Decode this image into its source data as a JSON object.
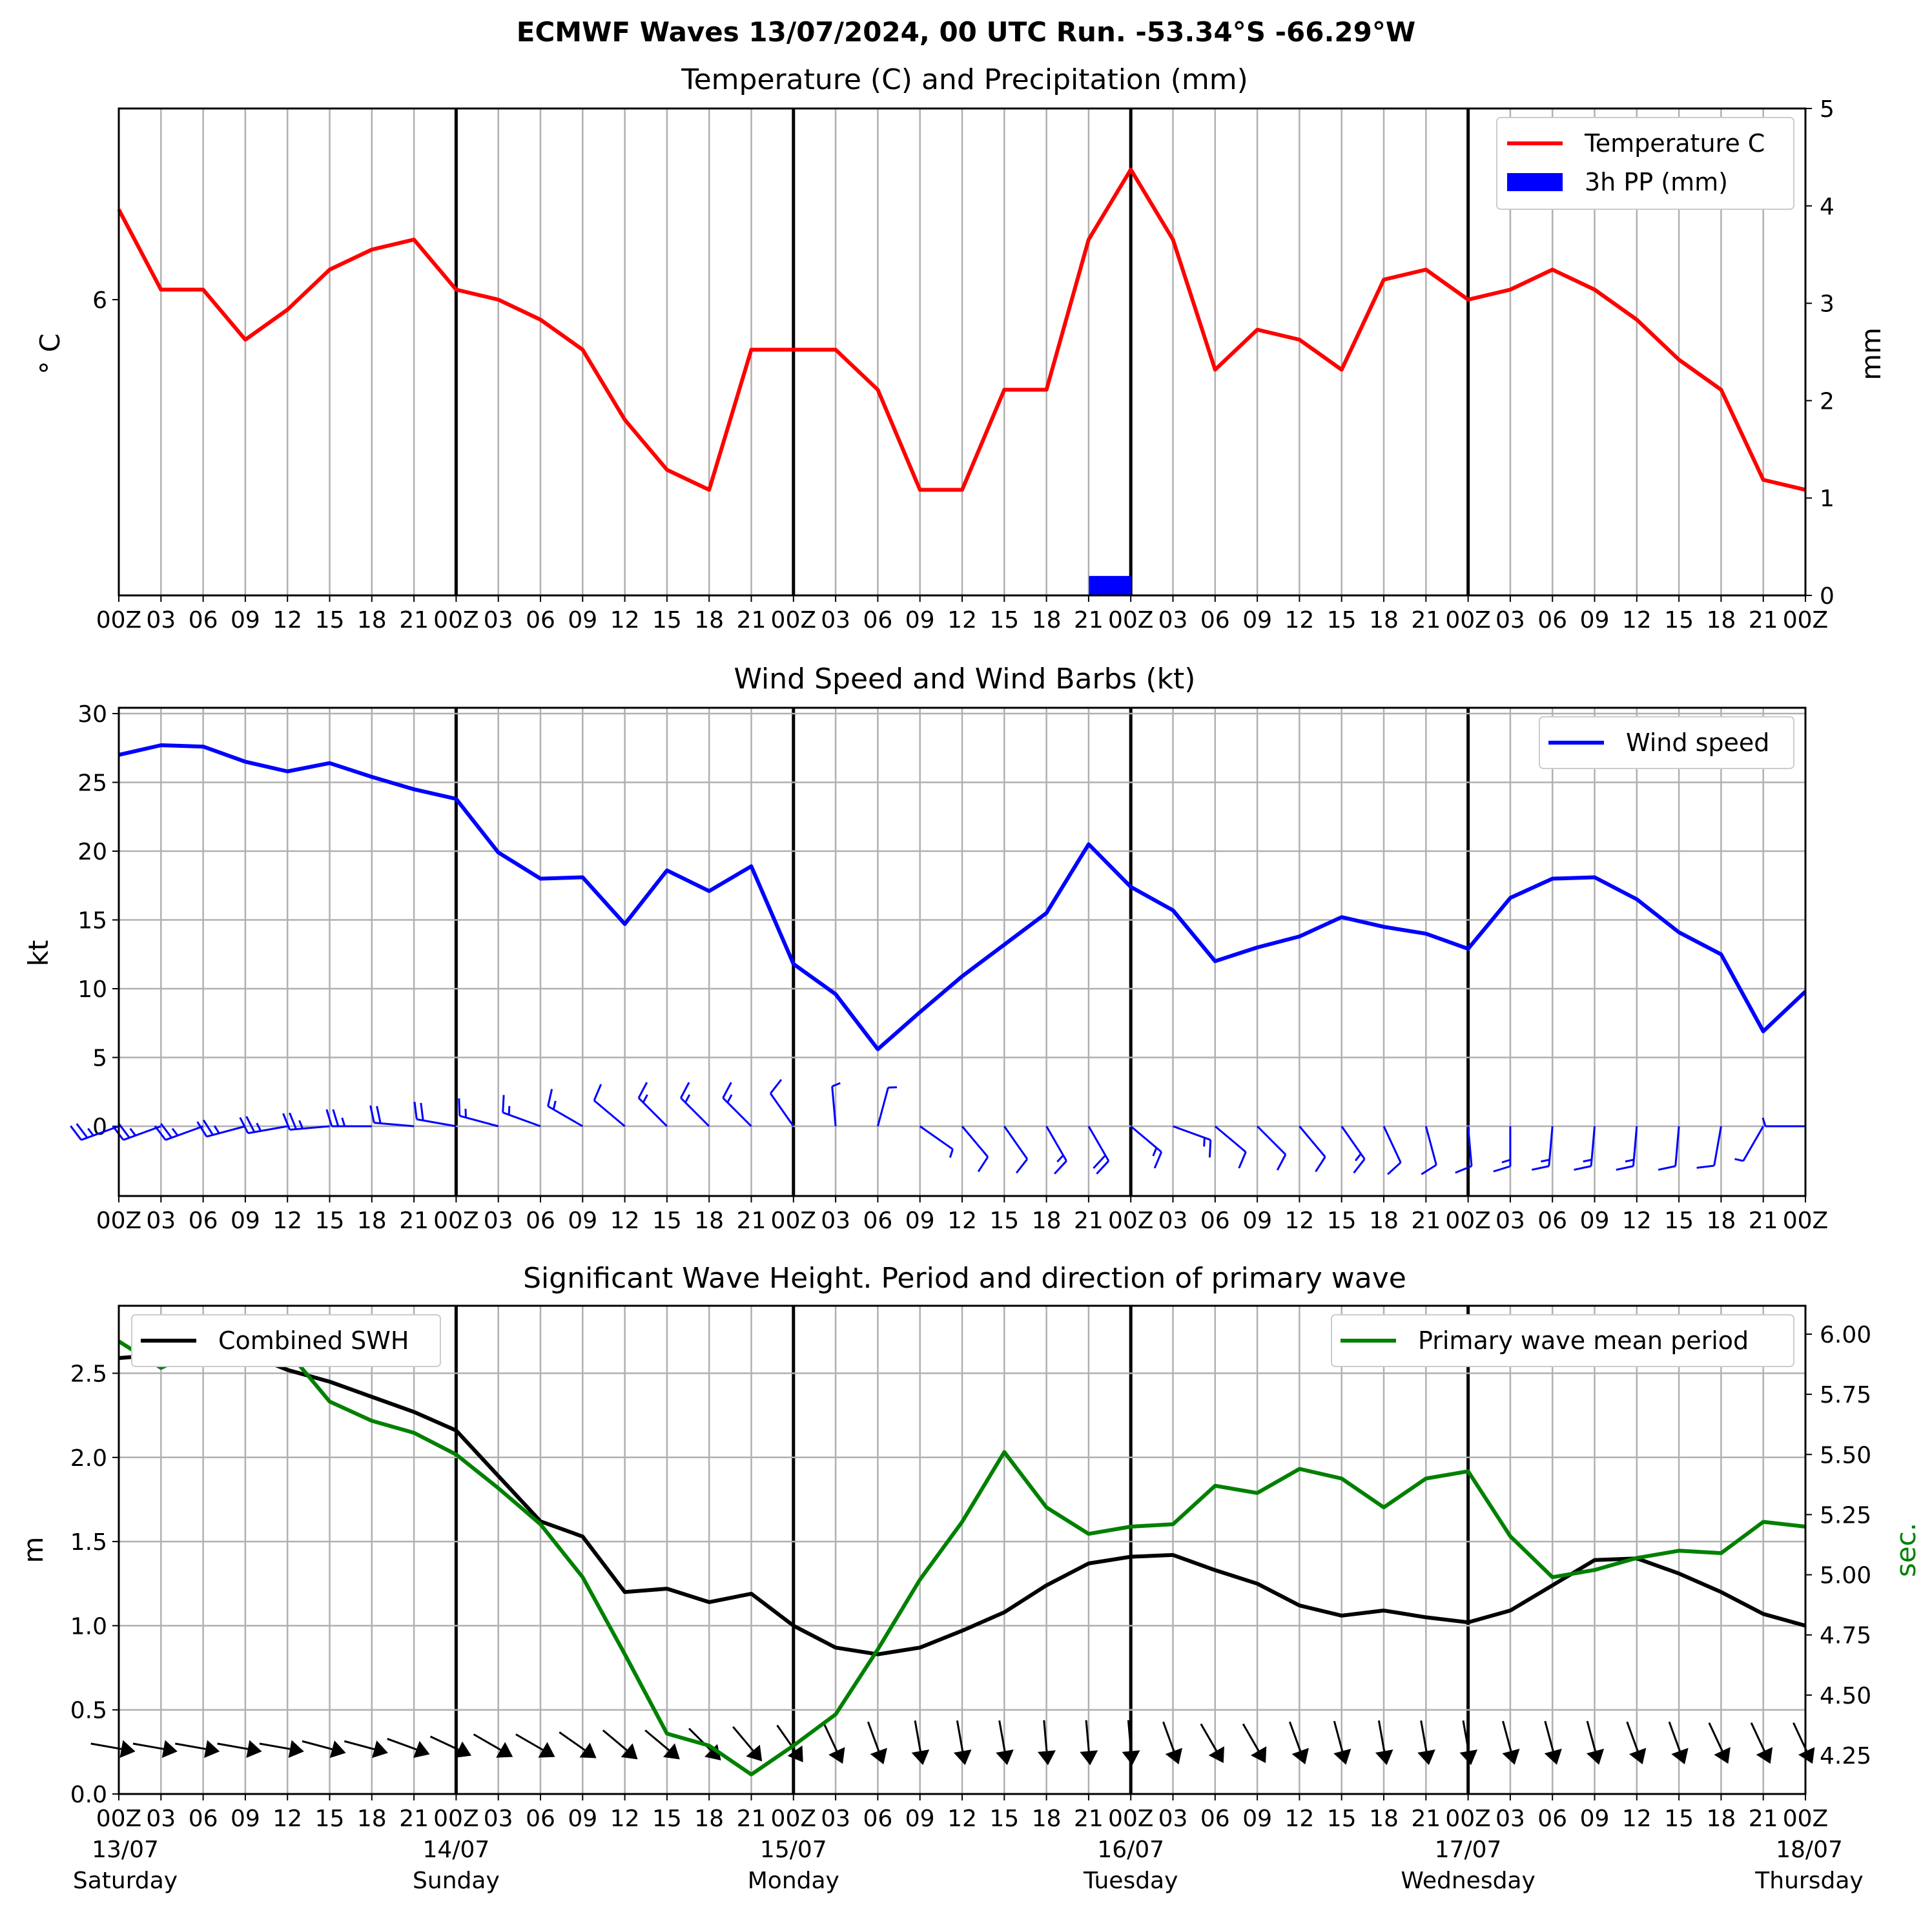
{
  "suptitle": "ECMWF Waves 13/07/2024, 00 UTC Run. -53.34°S -66.29°W",
  "time_ticks": [
    "00Z",
    "03",
    "06",
    "09",
    "12",
    "15",
    "18",
    "21",
    "00Z",
    "03",
    "06",
    "09",
    "12",
    "15",
    "18",
    "21",
    "00Z",
    "03",
    "06",
    "09",
    "12",
    "15",
    "18",
    "21",
    "00Z",
    "03",
    "06",
    "09",
    "12",
    "15",
    "18",
    "21",
    "00Z",
    "03",
    "06",
    "09",
    "12",
    "15",
    "18",
    "21",
    "00Z"
  ],
  "day_labels": [
    {
      "date": "13/07",
      "day": "Saturday"
    },
    {
      "date": "14/07",
      "day": "Sunday"
    },
    {
      "date": "15/07",
      "day": "Monday"
    },
    {
      "date": "16/07",
      "day": "Tuesday"
    },
    {
      "date": "17/07",
      "day": "Wednesday"
    },
    {
      "date": "18/07",
      "day": "Thursday"
    }
  ],
  "colors": {
    "temperature": "#ff0000",
    "precip": "#0000ff",
    "wind": "#0000ff",
    "swh": "#000000",
    "period": "#008000",
    "grid": "#b0b0b0"
  },
  "chart_data": [
    {
      "type": "line",
      "title": "Temperature (C) and Precipitation (mm)",
      "x_hours": [
        0,
        3,
        6,
        9,
        12,
        15,
        18,
        21,
        24,
        27,
        30,
        33,
        36,
        39,
        42,
        45,
        48,
        51,
        54,
        57,
        60,
        63,
        66,
        69,
        72,
        75,
        78,
        81,
        84,
        87,
        90,
        93,
        96,
        99,
        102,
        105,
        108,
        111,
        114,
        117,
        120
      ],
      "series": [
        {
          "name": "Temperature C",
          "axis": "left",
          "values": [
            6.9,
            6.1,
            6.1,
            5.6,
            5.9,
            6.3,
            6.5,
            6.6,
            6.1,
            6.0,
            5.8,
            5.5,
            4.8,
            4.3,
            4.1,
            5.5,
            5.5,
            5.5,
            5.1,
            4.1,
            4.1,
            5.1,
            5.1,
            6.6,
            7.3,
            6.6,
            5.3,
            5.7,
            5.6,
            5.3,
            6.2,
            6.3,
            6.0,
            6.1,
            6.3,
            6.1,
            5.8,
            5.4,
            5.1,
            4.2,
            4.1
          ]
        },
        {
          "name": "3h PP (mm)",
          "axis": "right",
          "type": "bar",
          "values": [
            0,
            0,
            0,
            0,
            0,
            0,
            0,
            0,
            0,
            0,
            0,
            0,
            0,
            0,
            0,
            0,
            0,
            0,
            0,
            0,
            0,
            0,
            0,
            0,
            0.2,
            0,
            0,
            0,
            0,
            0,
            0,
            0,
            0,
            0,
            0,
            0,
            0,
            0,
            0,
            0
          ]
        }
      ],
      "ylabel": "° C",
      "ylabel_right": "mm",
      "y_ticks_left": [
        "6"
      ],
      "y_ticks_right": [
        "0",
        "1",
        "2",
        "3",
        "4",
        "5"
      ],
      "ylim_right": [
        0,
        5
      ],
      "legend": "top-right"
    },
    {
      "type": "line",
      "title": "Wind Speed and Wind Barbs (kt)",
      "x_hours": [
        0,
        3,
        6,
        9,
        12,
        15,
        18,
        21,
        24,
        27,
        30,
        33,
        36,
        39,
        42,
        45,
        48,
        51,
        54,
        57,
        60,
        63,
        66,
        69,
        72,
        75,
        78,
        81,
        84,
        87,
        90,
        93,
        96,
        99,
        102,
        105,
        108,
        111,
        114,
        117,
        120
      ],
      "series": [
        {
          "name": "Wind speed",
          "values": [
            27.0,
            27.7,
            27.6,
            26.5,
            25.8,
            26.4,
            25.4,
            24.5,
            23.8,
            19.9,
            18.0,
            18.1,
            14.7,
            18.6,
            17.1,
            18.9,
            11.8,
            9.6,
            5.6,
            8.3,
            10.9,
            13.2,
            15.5,
            20.5,
            17.4,
            15.7,
            12.0,
            13.0,
            13.8,
            15.2,
            14.5,
            14.0,
            12.9,
            16.6,
            18.0,
            18.1,
            16.5,
            14.1,
            12.5,
            6.9,
            9.8
          ]
        }
      ],
      "ylabel": "kt",
      "y_ticks": [
        "0",
        "5",
        "10",
        "15",
        "20",
        "25",
        "30"
      ],
      "ylim": [
        -5,
        30.5
      ],
      "legend": "top-right",
      "barb_directions_deg": [
        250,
        250,
        250,
        255,
        260,
        265,
        270,
        275,
        280,
        285,
        290,
        300,
        310,
        315,
        315,
        315,
        325,
        355,
        15,
        125,
        140,
        145,
        150,
        150,
        130,
        110,
        130,
        135,
        140,
        145,
        155,
        165,
        175,
        180,
        185,
        185,
        185,
        185,
        190,
        210,
        270
      ]
    },
    {
      "type": "line",
      "title": "Significant Wave Height. Period and direction of primary wave",
      "x_hours": [
        0,
        3,
        6,
        9,
        12,
        15,
        18,
        21,
        24,
        27,
        30,
        33,
        36,
        39,
        42,
        45,
        48,
        51,
        54,
        57,
        60,
        63,
        66,
        69,
        72,
        75,
        78,
        81,
        84,
        87,
        90,
        93,
        96,
        99,
        102,
        105,
        108,
        111,
        114,
        117,
        120
      ],
      "series": [
        {
          "name": "Combined SWH",
          "axis": "left",
          "values": [
            2.59,
            2.61,
            2.63,
            2.62,
            2.52,
            2.45,
            2.36,
            2.27,
            2.16,
            1.89,
            1.62,
            1.53,
            1.2,
            1.22,
            1.14,
            1.19,
            1.0,
            0.87,
            0.83,
            0.87,
            0.97,
            1.08,
            1.24,
            1.37,
            1.41,
            1.42,
            1.33,
            1.25,
            1.12,
            1.06,
            1.09,
            1.05,
            1.02,
            1.09,
            1.24,
            1.39,
            1.4,
            1.31,
            1.2,
            1.07,
            1.0
          ]
        },
        {
          "name": "Primary wave mean period",
          "axis": "right",
          "values": [
            5.97,
            5.86,
            5.94,
            6.03,
            5.93,
            5.72,
            5.64,
            5.59,
            5.5,
            5.36,
            5.21,
            4.99,
            4.67,
            4.34,
            4.29,
            4.17,
            4.29,
            4.42,
            4.69,
            4.98,
            5.22,
            5.51,
            5.28,
            5.17,
            5.2,
            5.21,
            5.37,
            5.34,
            5.44,
            5.4,
            5.28,
            5.4,
            5.43,
            5.16,
            4.99,
            5.02,
            5.07,
            5.1,
            5.09,
            5.22,
            5.2
          ]
        }
      ],
      "ylabel": "m",
      "ylabel_right": "sec.",
      "y_ticks_left": [
        "0.0",
        "0.5",
        "1.0",
        "1.5",
        "2.0",
        "2.5"
      ],
      "y_ticks_right": [
        "4.25",
        "4.50",
        "4.75",
        "5.00",
        "5.25",
        "5.50",
        "5.75",
        "6.00"
      ],
      "ylim": [
        0,
        2.9
      ],
      "ylim_right": [
        4.09,
        6.12
      ],
      "legend_left": "top-left",
      "legend_right": "top-right",
      "arrow_directions_deg": [
        280,
        280,
        280,
        280,
        280,
        285,
        285,
        290,
        295,
        300,
        300,
        305,
        310,
        310,
        315,
        320,
        325,
        335,
        340,
        350,
        350,
        350,
        355,
        355,
        355,
        340,
        330,
        330,
        340,
        345,
        350,
        350,
        350,
        345,
        345,
        345,
        340,
        340,
        335,
        335,
        335
      ]
    }
  ]
}
